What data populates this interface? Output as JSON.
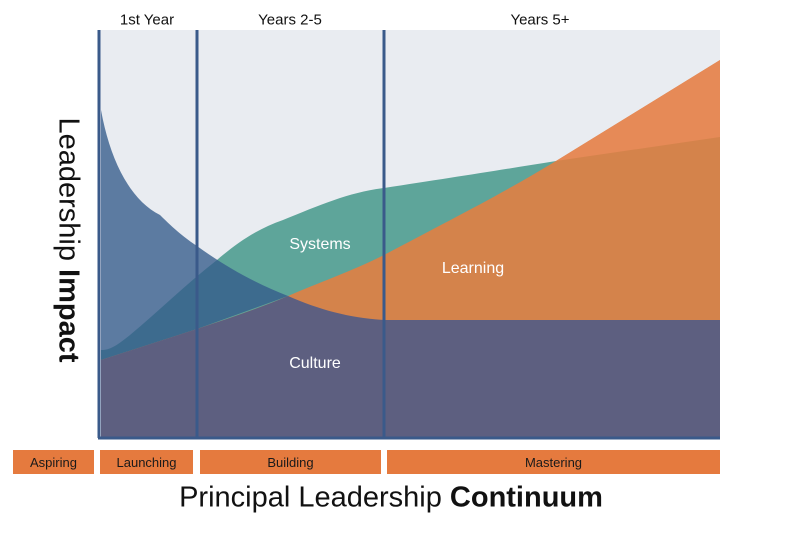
{
  "phases": [
    "1st Year",
    "Years 2-5",
    "Years 5+"
  ],
  "areas": {
    "systems": "Systems",
    "learning": "Learning",
    "culture": "Culture"
  },
  "stages": [
    "Aspiring",
    "Launching",
    "Building",
    "Mastering"
  ],
  "y_axis": {
    "regular": "Leadership ",
    "bold": "Impact"
  },
  "x_axis": {
    "regular": "Principal Leadership ",
    "bold": "Continuum"
  },
  "colors": {
    "background": "#e9ecf1",
    "systems": "#5ea59a",
    "learning_dark": "#d4834b",
    "learning_light": "#e68a57",
    "culture_blue": "#5b7aa0",
    "culture_purple": "#5d5f80",
    "divider": "#3a5a8a",
    "stage_box": "#e57a3e"
  }
}
